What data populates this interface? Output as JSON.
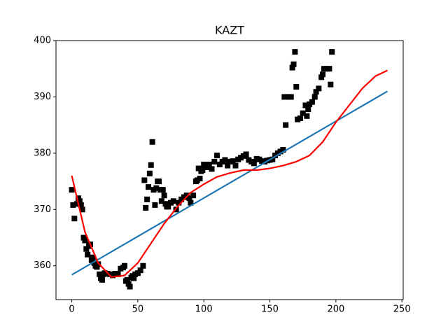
{
  "chart_data": {
    "type": "scatter",
    "title": "KAZT",
    "xlim": [
      -11.95,
      250.95
    ],
    "ylim": [
      354,
      400
    ],
    "xticks": [
      0,
      50,
      100,
      150,
      200,
      250
    ],
    "yticks": [
      360,
      370,
      380,
      390,
      400
    ],
    "series": [
      {
        "type": "scatter",
        "color": "#000000",
        "x": [
          0,
          1,
          2,
          4,
          5,
          6,
          7,
          8,
          9,
          10,
          11,
          12,
          13,
          14,
          15,
          16,
          17,
          18,
          19,
          20,
          21,
          22,
          23,
          24,
          25,
          27,
          29,
          31,
          33,
          35,
          37,
          39,
          40,
          41,
          42,
          43,
          44,
          45,
          46,
          47,
          48,
          50,
          52,
          54,
          55,
          56,
          57,
          58,
          59,
          60,
          61,
          62,
          63,
          64,
          65,
          66,
          67,
          68,
          69,
          70,
          71,
          72,
          73,
          75,
          77,
          79,
          81,
          83,
          85,
          87,
          89,
          90,
          92,
          94,
          95,
          96,
          97,
          98,
          99,
          100,
          102,
          104,
          106,
          108,
          110,
          112,
          114,
          116,
          118,
          120,
          122,
          124,
          126,
          128,
          130,
          132,
          134,
          136,
          138,
          140,
          142,
          144,
          146,
          148,
          150,
          152,
          154,
          156,
          158,
          160,
          161,
          162,
          164,
          166,
          167,
          168,
          169,
          170,
          171,
          173,
          175,
          177,
          178,
          179,
          180,
          182,
          184,
          185,
          187,
          189,
          190,
          191,
          193,
          195,
          196,
          197
        ],
        "values": [
          373.5,
          370.8,
          368.4,
          371,
          372,
          371.5,
          370.8,
          370,
          365,
          364.5,
          363,
          362,
          363.5,
          363.8,
          361,
          361.5,
          360.5,
          360,
          359.8,
          360.3,
          358.5,
          357.8,
          357.5,
          358.5,
          358.7,
          358.6,
          358.5,
          358.3,
          358.6,
          358.5,
          359.5,
          359.7,
          360,
          357.3,
          357.5,
          356.8,
          356.3,
          357.9,
          358.2,
          357.8,
          358.5,
          358.7,
          359.2,
          360,
          375.2,
          370.3,
          371.8,
          374,
          376.4,
          377.9,
          382,
          373.5,
          370.8,
          373.8,
          375,
          375,
          373.5,
          371.5,
          373.5,
          372.5,
          371,
          370.5,
          370.5,
          371.2,
          371.5,
          370,
          371.2,
          371.8,
          372.2,
          372.5,
          372,
          371.2,
          372.5,
          375,
          375.2,
          377.3,
          375.5,
          376.8,
          377,
          378,
          377.5,
          378,
          377.2,
          378.5,
          379.6,
          378,
          378.5,
          378.8,
          377.8,
          378.5,
          378.6,
          377.8,
          378.9,
          379.2,
          379.5,
          379.8,
          378.8,
          378.5,
          378.2,
          379,
          378.9,
          378.6,
          378.5,
          378.7,
          378.8,
          378.9,
          379.6,
          380,
          380.3,
          380.6,
          390,
          385,
          390,
          390,
          395.2,
          395.8,
          398,
          391.8,
          386,
          386.2,
          387.1,
          388.5,
          386.6,
          387.8,
          388.7,
          389.1,
          390,
          390.9,
          391.5,
          393.5,
          394,
          395,
          395,
          395,
          392.2,
          398
        ]
      },
      {
        "type": "line",
        "color": "#1f77b4",
        "x": [
          0,
          239
        ],
        "values": [
          358.4,
          391
        ]
      },
      {
        "type": "line",
        "color": "#ff0000",
        "x": [
          0,
          10,
          20,
          30,
          40,
          50,
          60,
          70,
          80,
          90,
          100,
          110,
          120,
          130,
          140,
          150,
          160,
          170,
          180,
          190,
          200,
          210,
          220,
          230,
          239
        ],
        "values": [
          376,
          366,
          360.5,
          358,
          358.3,
          360.5,
          364,
          367.5,
          370.5,
          373,
          374.5,
          375.8,
          376.5,
          377,
          377,
          377.3,
          377.8,
          378.5,
          379.6,
          382,
          385.5,
          388.5,
          391.5,
          393.7,
          394.7
        ]
      }
    ]
  }
}
